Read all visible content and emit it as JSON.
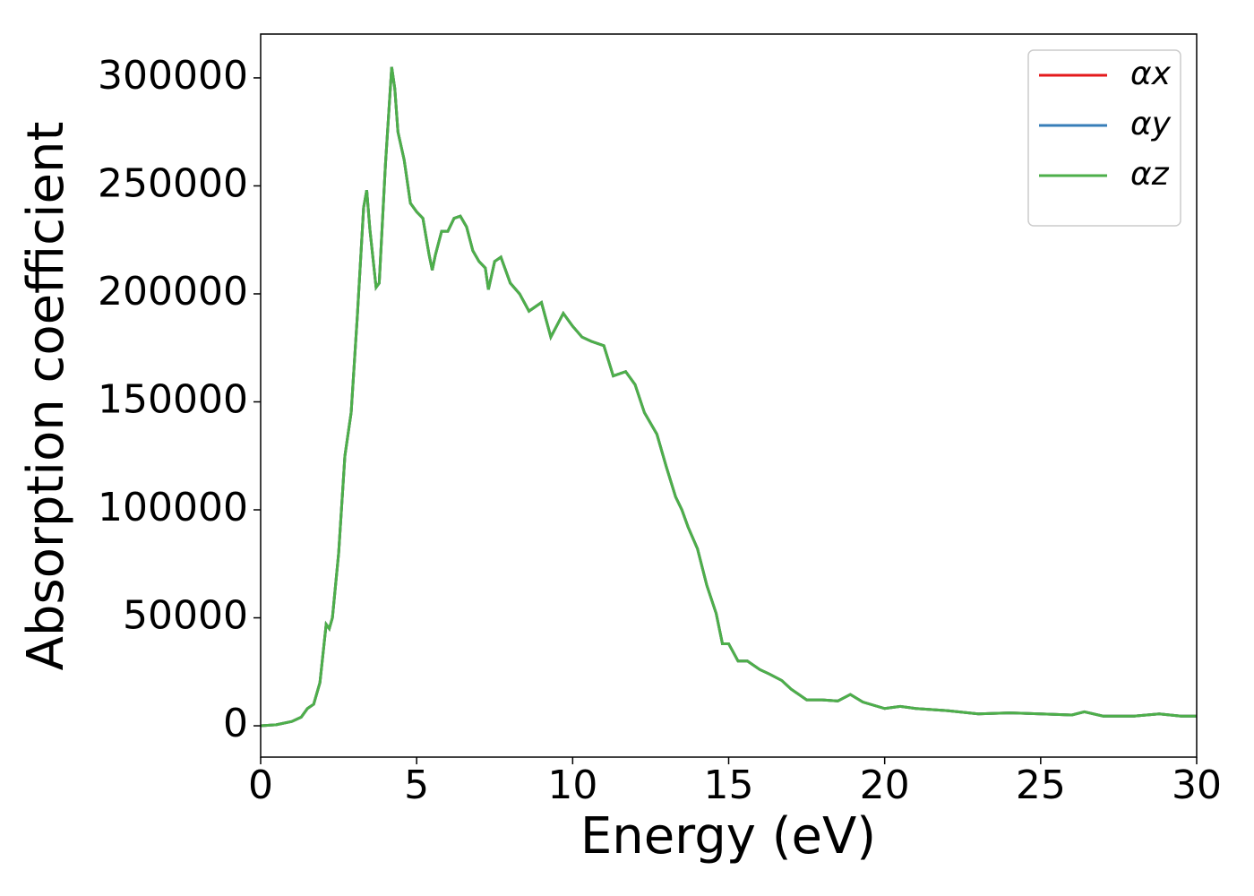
{
  "chart_data": {
    "type": "line",
    "x_label": "Energy (eV)",
    "y_label": "Absorption coefficient",
    "x": [
      0,
      0.5,
      1.0,
      1.3,
      1.5,
      1.7,
      1.9,
      2.1,
      2.2,
      2.3,
      2.5,
      2.7,
      2.9,
      3.1,
      3.3,
      3.4,
      3.5,
      3.7,
      3.8,
      4.0,
      4.2,
      4.3,
      4.4,
      4.6,
      4.8,
      5.0,
      5.2,
      5.4,
      5.5,
      5.6,
      5.8,
      6.0,
      6.2,
      6.4,
      6.6,
      6.8,
      7.0,
      7.2,
      7.3,
      7.5,
      7.7,
      8.0,
      8.3,
      8.6,
      9.0,
      9.3,
      9.7,
      10.0,
      10.3,
      10.6,
      11.0,
      11.3,
      11.7,
      12.0,
      12.3,
      12.7,
      13.0,
      13.3,
      13.5,
      13.7,
      14.0,
      14.3,
      14.6,
      14.8,
      15.0,
      15.3,
      15.6,
      16.0,
      16.3,
      16.7,
      17.0,
      17.5,
      18.0,
      18.5,
      18.9,
      19.3,
      20.0,
      20.5,
      21.0,
      22.0,
      23.0,
      24.0,
      25.0,
      26.0,
      26.4,
      27.0,
      28.0,
      28.8,
      29.5,
      30
    ],
    "series": [
      {
        "name": "αx",
        "color": "#e41a1c",
        "values": [
          0,
          500,
          2000,
          4000,
          8000,
          10000,
          20000,
          47000,
          45000,
          50000,
          80000,
          125000,
          145000,
          190000,
          240000,
          248000,
          230000,
          203000,
          205000,
          260000,
          305000,
          295000,
          275000,
          262000,
          242000,
          238000,
          235000,
          218000,
          211000,
          218000,
          229000,
          229000,
          235000,
          236000,
          231000,
          220000,
          215000,
          212000,
          202000,
          215000,
          217000,
          205000,
          200000,
          192000,
          196000,
          180000,
          191000,
          185000,
          180000,
          178000,
          176000,
          162000,
          164000,
          158000,
          145000,
          135000,
          120000,
          106000,
          100000,
          92000,
          82000,
          65000,
          52000,
          38000,
          38000,
          30000,
          30000,
          26000,
          24000,
          21000,
          17000,
          12000,
          12000,
          11500,
          14500,
          11000,
          8000,
          9000,
          8000,
          7000,
          5500,
          6000,
          5500,
          5000,
          6500,
          4500,
          4500,
          5500,
          4500,
          4500
        ]
      },
      {
        "name": "αy",
        "color": "#377eb8",
        "values": [
          0,
          500,
          2000,
          4000,
          8000,
          10000,
          20000,
          47000,
          45000,
          50000,
          80000,
          125000,
          145000,
          190000,
          240000,
          248000,
          230000,
          203000,
          205000,
          260000,
          305000,
          295000,
          275000,
          262000,
          242000,
          238000,
          235000,
          218000,
          211000,
          218000,
          229000,
          229000,
          235000,
          236000,
          231000,
          220000,
          215000,
          212000,
          202000,
          215000,
          217000,
          205000,
          200000,
          192000,
          196000,
          180000,
          191000,
          185000,
          180000,
          178000,
          176000,
          162000,
          164000,
          158000,
          145000,
          135000,
          120000,
          106000,
          100000,
          92000,
          82000,
          65000,
          52000,
          38000,
          38000,
          30000,
          30000,
          26000,
          24000,
          21000,
          17000,
          12000,
          12000,
          11500,
          14500,
          11000,
          8000,
          9000,
          8000,
          7000,
          5500,
          6000,
          5500,
          5000,
          6500,
          4500,
          4500,
          5500,
          4500,
          4500
        ]
      },
      {
        "name": "αz",
        "color": "#4daf4a",
        "values": [
          0,
          500,
          2000,
          4000,
          8000,
          10000,
          20000,
          47000,
          45000,
          50000,
          80000,
          125000,
          145000,
          190000,
          240000,
          248000,
          230000,
          203000,
          205000,
          260000,
          305000,
          295000,
          275000,
          262000,
          242000,
          238000,
          235000,
          218000,
          211000,
          218000,
          229000,
          229000,
          235000,
          236000,
          231000,
          220000,
          215000,
          212000,
          202000,
          215000,
          217000,
          205000,
          200000,
          192000,
          196000,
          180000,
          191000,
          185000,
          180000,
          178000,
          176000,
          162000,
          164000,
          158000,
          145000,
          135000,
          120000,
          106000,
          100000,
          92000,
          82000,
          65000,
          52000,
          38000,
          38000,
          30000,
          30000,
          26000,
          24000,
          21000,
          17000,
          12000,
          12000,
          11500,
          14500,
          11000,
          8000,
          9000,
          8000,
          7000,
          5500,
          6000,
          5500,
          5000,
          6500,
          4500,
          4500,
          5500,
          4500,
          4500
        ]
      }
    ],
    "xlim": [
      0,
      30
    ],
    "xticks": [
      0,
      5,
      10,
      15,
      20,
      25,
      30
    ],
    "ylim": [
      -14500,
      320300
    ],
    "yticks": [
      0,
      50000,
      100000,
      150000,
      200000,
      250000,
      300000
    ],
    "legend": "upper right",
    "grid": false
  }
}
